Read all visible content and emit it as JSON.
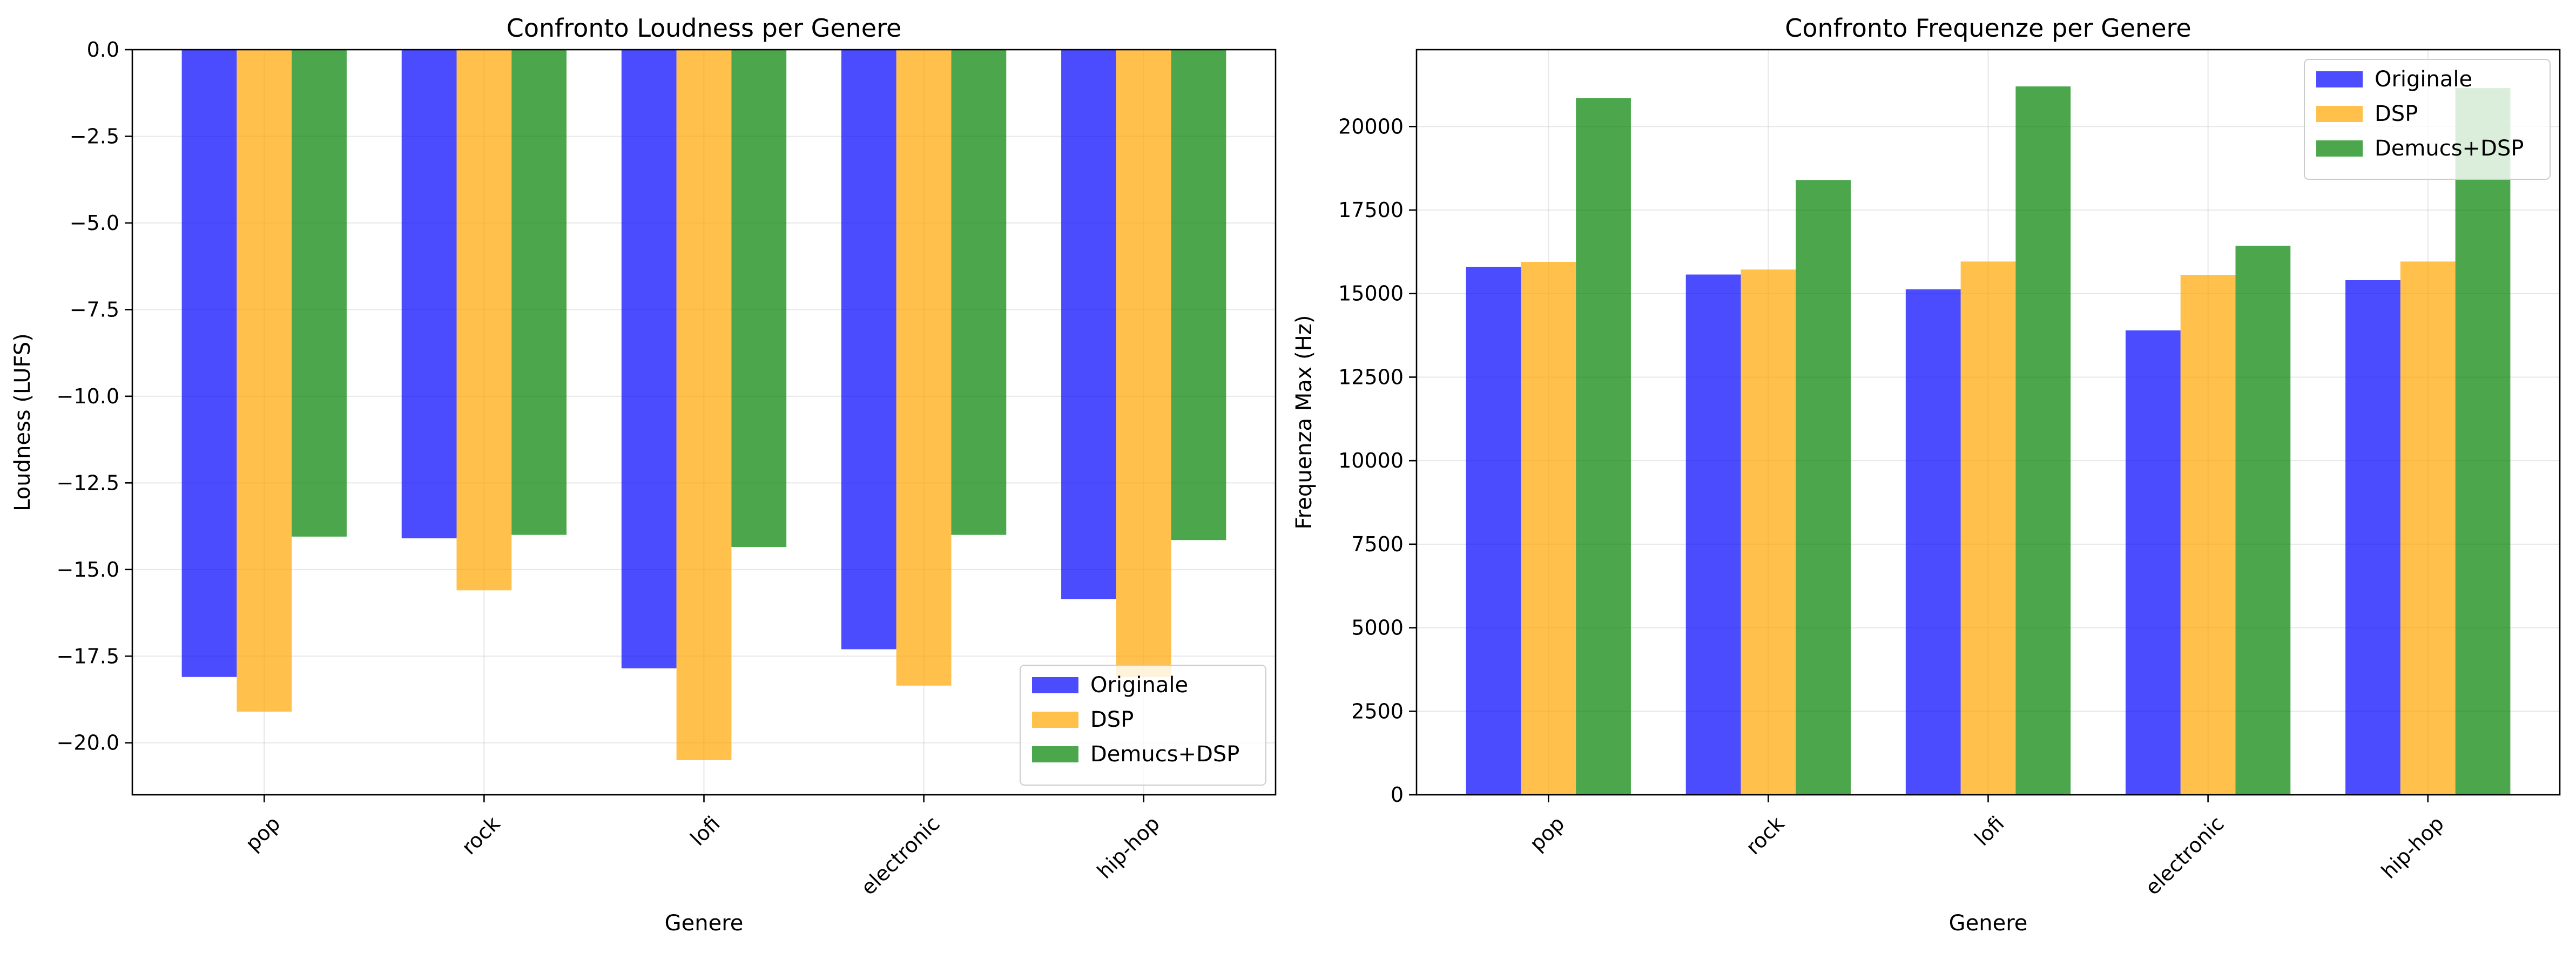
{
  "colors": {
    "Originale": "#0000ff",
    "DSP": "#ffa500",
    "Demucs+DSP": "#008000"
  },
  "chart_data": [
    {
      "type": "bar",
      "title": "Confronto Loudness per Genere",
      "xlabel": "Genere",
      "ylabel": "Loudness (LUFS)",
      "categories": [
        "pop",
        "rock",
        "lofi",
        "electronic",
        "hip-hop"
      ],
      "series": [
        {
          "name": "Originale",
          "values": [
            -18.1,
            -14.1,
            -17.85,
            -17.3,
            -15.85
          ]
        },
        {
          "name": "DSP",
          "values": [
            -19.1,
            -15.6,
            -20.5,
            -18.35,
            -18.1
          ]
        },
        {
          "name": "Demucs+DSP",
          "values": [
            -14.05,
            -14.0,
            -14.35,
            -14.0,
            -14.15
          ]
        }
      ],
      "ylim": [
        -21.5,
        0
      ],
      "yticks": [
        0.0,
        -2.5,
        -5.0,
        -7.5,
        -10.0,
        -12.5,
        -15.0,
        -17.5,
        -20.0
      ],
      "ytick_labels": [
        "0.0",
        "−2.5",
        "−5.0",
        "−7.5",
        "−10.0",
        "−12.5",
        "−15.0",
        "−17.5",
        "−20.0"
      ],
      "grid": true,
      "legend": "lower right",
      "bar_alpha": 0.7
    },
    {
      "type": "bar",
      "title": "Confronto Frequenze per Genere",
      "xlabel": "Genere",
      "ylabel": "Frequenza Max (Hz)",
      "categories": [
        "pop",
        "rock",
        "lofi",
        "electronic",
        "hip-hop"
      ],
      "series": [
        {
          "name": "Originale",
          "values": [
            15800,
            15570,
            15130,
            13900,
            15400
          ]
        },
        {
          "name": "DSP",
          "values": [
            15950,
            15720,
            15960,
            15560,
            15960
          ]
        },
        {
          "name": "Demucs+DSP",
          "values": [
            20850,
            18400,
            21200,
            16430,
            21150
          ]
        }
      ],
      "ylim": [
        0,
        22300
      ],
      "yticks": [
        0,
        2500,
        5000,
        7500,
        10000,
        12500,
        15000,
        17500,
        20000
      ],
      "ytick_labels": [
        "0",
        "2500",
        "5000",
        "7500",
        "10000",
        "12500",
        "15000",
        "17500",
        "20000"
      ],
      "grid": true,
      "legend": "upper right",
      "bar_alpha": 0.7
    }
  ]
}
